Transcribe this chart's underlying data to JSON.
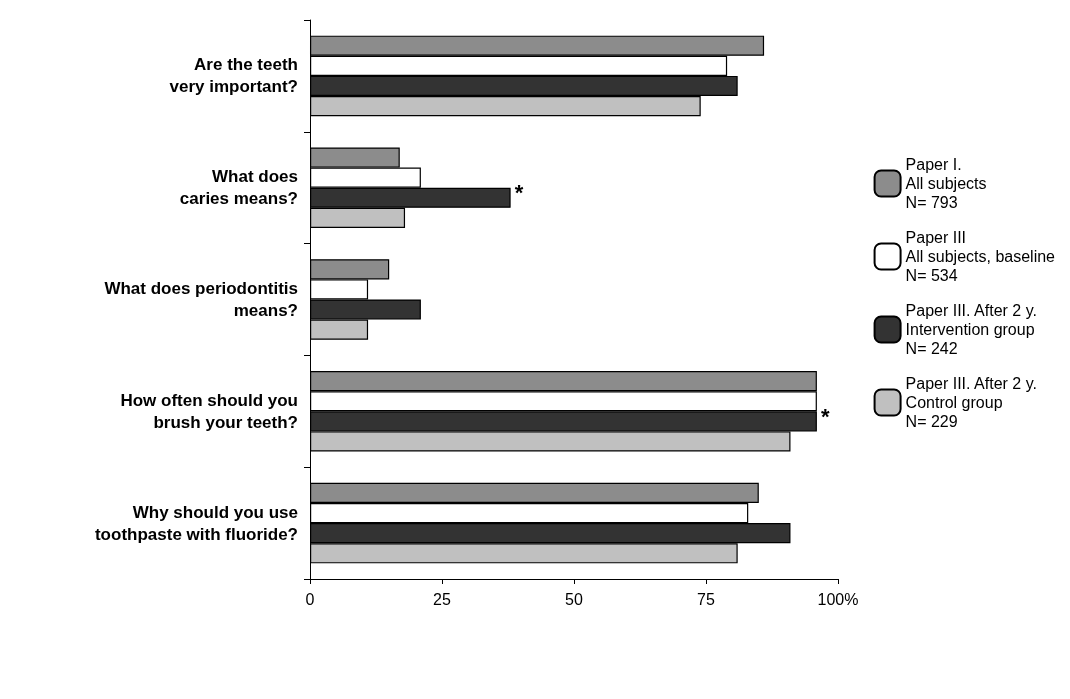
{
  "chart_data": {
    "type": "bar",
    "orientation": "horizontal",
    "categories": [
      "Are the teeth\nvery important?",
      "What does\ncaries means?",
      "What does periodontitis\nmeans?",
      "How often should you\nbrush your teeth?",
      "Why should you use\ntoothpaste with fluoride?"
    ],
    "series": [
      {
        "name": "Paper I.\nAll subjects\nN= 793",
        "color": "#8c8c8c",
        "values": [
          86,
          17,
          15,
          96,
          85
        ]
      },
      {
        "name": "Paper III\nAll subjects, baseline\nN= 534",
        "color": "#ffffff",
        "values": [
          79,
          21,
          11,
          96,
          83
        ]
      },
      {
        "name": "Paper III. After 2 y.\nIntervention group\nN= 242",
        "color": "#333333",
        "values": [
          81,
          38,
          21,
          96,
          91
        ]
      },
      {
        "name": "Paper III. After 2 y.\nControl group\nN= 229",
        "color": "#c0c0c0",
        "values": [
          74,
          18,
          11,
          91,
          81
        ]
      }
    ],
    "xlim": [
      0,
      100
    ],
    "xticks": [
      0,
      25,
      50,
      75,
      {
        "value": 100,
        "label": "100%"
      }
    ],
    "annotations": [
      {
        "text": "*",
        "x": 38,
        "y": "What does\ncaries means?"
      },
      {
        "text": "*",
        "x": 96,
        "y": "How often should you\nbrush your teeth?"
      }
    ],
    "grid": false,
    "legend": "right"
  }
}
